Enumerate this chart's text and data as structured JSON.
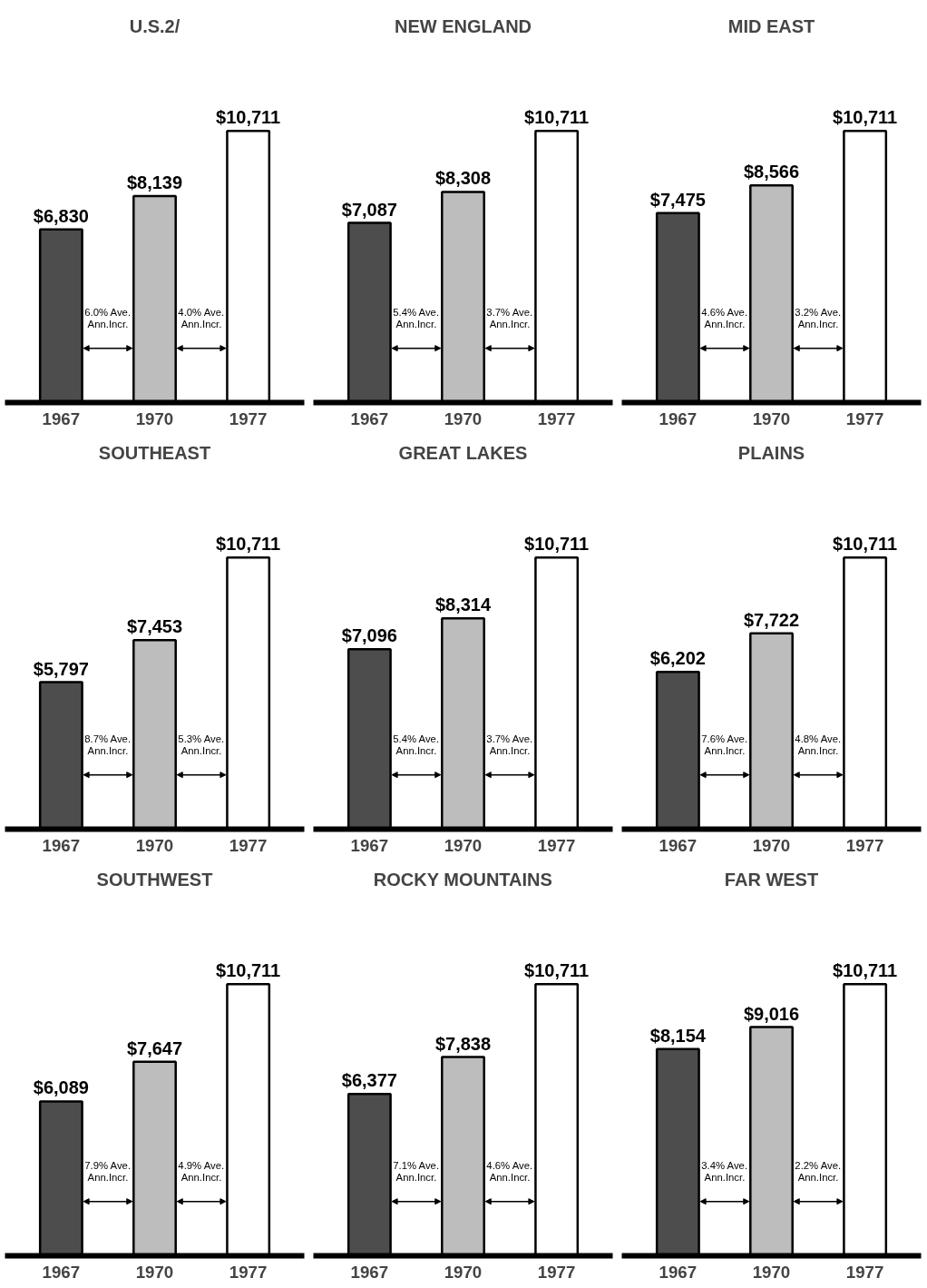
{
  "chart_data": [
    {
      "type": "bar",
      "title": "U.S.2/",
      "categories": [
        "1967",
        "1970",
        "1977"
      ],
      "values": [
        6830,
        8139,
        10711
      ],
      "value_labels": [
        "$6,830",
        "$8,139",
        "$10,711"
      ],
      "colors": [
        "#4d4d4d",
        "#bdbdbd",
        "#ffffff"
      ],
      "annotations": [
        "6.0% Ave.\nAnn.Incr.",
        "4.0% Ave.\nAnn.Incr."
      ],
      "grid": false
    },
    {
      "type": "bar",
      "title": "NEW ENGLAND",
      "categories": [
        "1967",
        "1970",
        "1977"
      ],
      "values": [
        7087,
        8308,
        10711
      ],
      "value_labels": [
        "$7,087",
        "$8,308",
        "$10,711"
      ],
      "colors": [
        "#4d4d4d",
        "#bdbdbd",
        "#ffffff"
      ],
      "annotations": [
        "5.4% Ave.\nAnn.Incr.",
        "3.7% Ave.\nAnn.Incr."
      ],
      "grid": false
    },
    {
      "type": "bar",
      "title": "MID EAST",
      "categories": [
        "1967",
        "1970",
        "1977"
      ],
      "values": [
        7475,
        8566,
        10711
      ],
      "value_labels": [
        "$7,475",
        "$8,566",
        "$10,711"
      ],
      "colors": [
        "#4d4d4d",
        "#bdbdbd",
        "#ffffff"
      ],
      "annotations": [
        "4.6% Ave.\nAnn.Incr.",
        "3.2% Ave.\nAnn.Incr."
      ],
      "grid": false
    },
    {
      "type": "bar",
      "title": "SOUTHEAST",
      "categories": [
        "1967",
        "1970",
        "1977"
      ],
      "values": [
        5797,
        7453,
        10711
      ],
      "value_labels": [
        "$5,797",
        "$7,453",
        "$10,711"
      ],
      "colors": [
        "#4d4d4d",
        "#bdbdbd",
        "#ffffff"
      ],
      "annotations": [
        "8.7% Ave.\nAnn.Incr.",
        "5.3% Ave.\nAnn.Incr."
      ],
      "grid": false
    },
    {
      "type": "bar",
      "title": "GREAT LAKES",
      "categories": [
        "1967",
        "1970",
        "1977"
      ],
      "values": [
        7096,
        8314,
        10711
      ],
      "value_labels": [
        "$7,096",
        "$8,314",
        "$10,711"
      ],
      "colors": [
        "#4d4d4d",
        "#bdbdbd",
        "#ffffff"
      ],
      "annotations": [
        "5.4% Ave.\nAnn.Incr.",
        "3.7% Ave.\nAnn.Incr."
      ],
      "grid": false
    },
    {
      "type": "bar",
      "title": "PLAINS",
      "categories": [
        "1967",
        "1970",
        "1977"
      ],
      "values": [
        6202,
        7722,
        10711
      ],
      "value_labels": [
        "$6,202",
        "$7,722",
        "$10,711"
      ],
      "colors": [
        "#4d4d4d",
        "#bdbdbd",
        "#ffffff"
      ],
      "annotations": [
        "7.6% Ave.\nAnn.Incr.",
        "4.8% Ave.\nAnn.Incr."
      ],
      "grid": false
    },
    {
      "type": "bar",
      "title": "SOUTHWEST",
      "categories": [
        "1967",
        "1970",
        "1977"
      ],
      "values": [
        6089,
        7647,
        10711
      ],
      "value_labels": [
        "$6,089",
        "$7,647",
        "$10,711"
      ],
      "colors": [
        "#4d4d4d",
        "#bdbdbd",
        "#ffffff"
      ],
      "annotations": [
        "7.9% Ave.\nAnn.Incr.",
        "4.9% Ave.\nAnn.Incr."
      ],
      "grid": false
    },
    {
      "type": "bar",
      "title": "ROCKY MOUNTAINS",
      "categories": [
        "1967",
        "1970",
        "1977"
      ],
      "values": [
        6377,
        7838,
        10711
      ],
      "value_labels": [
        "$6,377",
        "$7,838",
        "$10,711"
      ],
      "colors": [
        "#4d4d4d",
        "#bdbdbd",
        "#ffffff"
      ],
      "annotations": [
        "7.1% Ave.\nAnn.Incr.",
        "4.6% Ave.\nAnn.Incr."
      ],
      "grid": false
    },
    {
      "type": "bar",
      "title": "FAR WEST",
      "categories": [
        "1967",
        "1970",
        "1977"
      ],
      "values": [
        8154,
        9016,
        10711
      ],
      "value_labels": [
        "$8,154",
        "$9,016",
        "$10,711"
      ],
      "colors": [
        "#4d4d4d",
        "#bdbdbd",
        "#ffffff"
      ],
      "annotations": [
        "3.4% Ave.\nAnn.Incr.",
        "2.2% Ave.\nAnn.Incr."
      ],
      "grid": false
    }
  ]
}
